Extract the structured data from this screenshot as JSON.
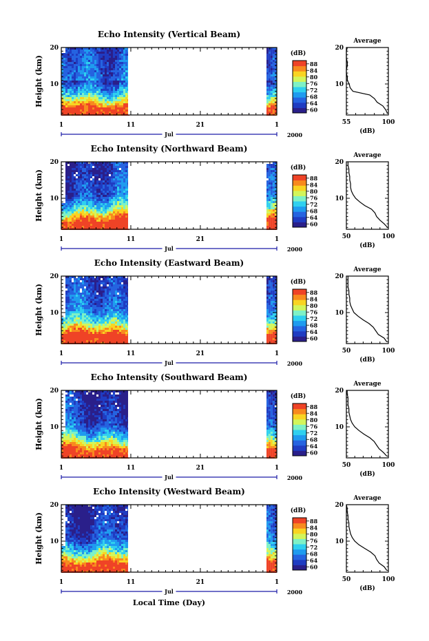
{
  "chart_data": {
    "type": "heatmap",
    "panels": [
      {
        "title": "Echo Intensity (Vertical Beam)",
        "avg_profile_db": [
          99,
          97,
          94,
          88,
          85,
          80,
          62,
          59,
          58,
          56,
          56,
          55,
          55,
          56,
          56,
          55,
          55,
          55,
          56
        ],
        "avg_xlim": [
          55,
          100
        ],
        "avg_xticks": [
          "55",
          "100"
        ]
      },
      {
        "title": "Echo Intensity (Northward Beam)",
        "avg_profile_db": [
          99,
          95,
          90,
          86,
          84,
          80,
          72,
          66,
          61,
          58,
          56,
          55,
          55,
          54,
          54,
          53,
          53,
          52,
          52
        ],
        "avg_xlim": [
          50,
          100
        ],
        "avg_xticks": [
          "50",
          "100"
        ]
      },
      {
        "title": "Echo Intensity (Eastward Beam)",
        "avg_profile_db": [
          98,
          95,
          88,
          85,
          82,
          77,
          70,
          64,
          59,
          57,
          55,
          54,
          54,
          53,
          53,
          52,
          52,
          52,
          52
        ],
        "avg_xlim": [
          50,
          100
        ],
        "avg_xticks": [
          "50",
          "100"
        ]
      },
      {
        "title": "Echo Intensity (Southward Beam)",
        "avg_profile_db": [
          98,
          94,
          89,
          86,
          83,
          78,
          71,
          65,
          60,
          57,
          55,
          54,
          53,
          53,
          52,
          52,
          52,
          51,
          51
        ],
        "avg_xlim": [
          50,
          100
        ],
        "avg_xticks": [
          "50",
          "100"
        ]
      },
      {
        "title": "Echo Intensity (Westward Beam)",
        "avg_profile_db": [
          98,
          95,
          89,
          86,
          84,
          79,
          72,
          65,
          60,
          57,
          55,
          54,
          53,
          53,
          52,
          52,
          51,
          51,
          50
        ],
        "avg_xlim": [
          50,
          100
        ],
        "avg_xticks": [
          "50",
          "100"
        ]
      }
    ],
    "ylabel": "Height (km)",
    "yticks": [
      "20",
      "10"
    ],
    "ylim_km": [
      1.5,
      20
    ],
    "xticks": [
      "1",
      "11",
      "21",
      "1"
    ],
    "month_label": "Jul",
    "year_label": "2000",
    "xlabel": "Local Time (Day)",
    "colorbar": {
      "unit": "(dB)",
      "ticks": [
        "88",
        "84",
        "80",
        "76",
        "72",
        "68",
        "64",
        "60"
      ],
      "range": [
        58,
        90
      ],
      "colors": [
        "#2a1f8a",
        "#1f3cc2",
        "#2563e0",
        "#1f9bef",
        "#2fd0ef",
        "#7ef1c6",
        "#d3f55a",
        "#f9d422",
        "#f88a1e",
        "#ef4326"
      ]
    },
    "avg_title": "Average",
    "avg_xlabel": "(dB)",
    "avg_yticks": [
      "20",
      "10"
    ],
    "data_coverage_days": [
      [
        1,
        11
      ],
      [
        31,
        32
      ]
    ],
    "time_range_days": [
      1,
      32
    ]
  }
}
